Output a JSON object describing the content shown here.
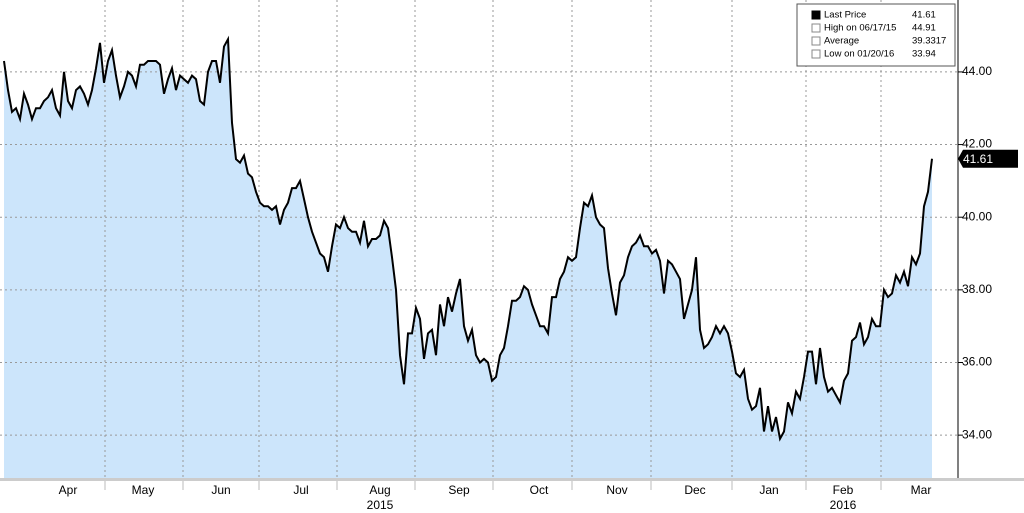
{
  "chart_data": {
    "type": "area",
    "values": [
      44.3,
      43.5,
      42.9,
      43.0,
      42.7,
      43.4,
      43.1,
      42.7,
      43.0,
      43.0,
      43.2,
      43.3,
      43.5,
      43.0,
      42.8,
      44.0,
      43.2,
      43.0,
      43.5,
      43.6,
      43.4,
      43.1,
      43.5,
      44.1,
      44.8,
      43.7,
      44.3,
      44.6,
      43.9,
      43.3,
      43.6,
      44.0,
      43.9,
      43.6,
      44.2,
      44.2,
      44.3,
      44.3,
      44.3,
      44.2,
      43.4,
      43.8,
      44.1,
      43.5,
      43.9,
      43.8,
      43.7,
      43.9,
      43.8,
      43.2,
      43.1,
      44.0,
      44.3,
      44.3,
      43.7,
      44.7,
      44.9,
      42.6,
      41.6,
      41.5,
      41.7,
      41.2,
      41.1,
      40.7,
      40.4,
      40.3,
      40.3,
      40.2,
      40.3,
      39.8,
      40.2,
      40.4,
      40.8,
      40.8,
      41.0,
      40.5,
      40.0,
      39.6,
      39.3,
      39.0,
      38.9,
      38.5,
      39.2,
      39.8,
      39.7,
      40.0,
      39.7,
      39.6,
      39.6,
      39.3,
      39.9,
      39.2,
      39.4,
      39.4,
      39.5,
      39.9,
      39.7,
      38.9,
      38.0,
      36.2,
      35.4,
      36.8,
      36.8,
      37.5,
      37.2,
      36.1,
      36.8,
      36.9,
      36.2,
      37.6,
      37.0,
      37.8,
      37.4,
      37.9,
      38.3,
      37.0,
      36.6,
      36.9,
      36.2,
      36.0,
      36.1,
      36.0,
      35.5,
      35.6,
      36.2,
      36.4,
      37.0,
      37.7,
      37.7,
      37.8,
      38.1,
      38.0,
      37.6,
      37.3,
      37.0,
      37.0,
      36.8,
      37.8,
      37.8,
      38.3,
      38.5,
      38.9,
      38.8,
      38.9,
      39.7,
      40.4,
      40.3,
      40.6,
      40.0,
      39.8,
      39.7,
      38.6,
      37.9,
      37.3,
      38.2,
      38.4,
      38.9,
      39.2,
      39.3,
      39.5,
      39.2,
      39.2,
      39.0,
      39.1,
      38.8,
      37.9,
      38.8,
      38.7,
      38.5,
      38.3,
      37.2,
      37.6,
      38.0,
      38.9,
      36.9,
      36.4,
      36.5,
      36.7,
      37.0,
      36.8,
      37.0,
      36.8,
      36.3,
      35.7,
      35.6,
      35.8,
      35.0,
      34.7,
      34.8,
      35.3,
      34.1,
      34.8,
      34.1,
      34.5,
      33.9,
      34.1,
      34.9,
      34.6,
      35.2,
      35.0,
      35.6,
      36.3,
      36.3,
      35.4,
      36.4,
      35.6,
      35.2,
      35.3,
      35.1,
      34.9,
      35.5,
      35.7,
      36.6,
      36.7,
      37.1,
      36.5,
      36.7,
      37.2,
      37.0,
      37.0,
      38.0,
      37.8,
      37.9,
      38.4,
      38.2,
      38.5,
      38.1,
      38.9,
      38.7,
      39.0,
      40.3,
      40.7,
      41.61
    ],
    "color": "#000000",
    "fill": "#cce5fb",
    "ylim": [
      32.82,
      45.98
    ],
    "yticks": [
      {
        "value": 34,
        "label": "34.00"
      },
      {
        "value": 36,
        "label": "36.00"
      },
      {
        "value": 38,
        "label": "38.00"
      },
      {
        "value": 40,
        "label": "40.00"
      },
      {
        "value": 42,
        "label": "42.00"
      },
      {
        "value": 44,
        "label": "44.00"
      }
    ],
    "xlim": [
      -1,
      238.5
    ],
    "xticks": [
      {
        "value": 16,
        "label": "Apr"
      },
      {
        "value": 34.75,
        "label": "May"
      },
      {
        "value": 54.25,
        "label": "Jun"
      },
      {
        "value": 74.25,
        "label": "Jul"
      },
      {
        "value": 94,
        "label": "Aug"
      },
      {
        "value": 113.75,
        "label": "Sep"
      },
      {
        "value": 133.75,
        "label": "Oct"
      },
      {
        "value": 153.25,
        "label": "Nov"
      },
      {
        "value": 172.75,
        "label": "Dec"
      },
      {
        "value": 191.25,
        "label": "Jan"
      },
      {
        "value": 209.75,
        "label": "Feb"
      },
      {
        "value": 229.25,
        "label": "Mar"
      }
    ],
    "xgrid": [
      25.25,
      44.75,
      63.75,
      83.25,
      102.75,
      122.25,
      142,
      161.75,
      182,
      200.5,
      219.25
    ],
    "year_labels": [
      {
        "value": 94,
        "label": "2015"
      },
      {
        "value": 209.75,
        "label": "2016"
      }
    ],
    "grid": true,
    "last_value": 41.61,
    "legend": [
      {
        "label": "Last Price",
        "value": 41.61
      },
      {
        "label": "High on 06/17/15",
        "value": 44.91
      },
      {
        "label": "Average",
        "value": 39.3317
      },
      {
        "label": "Low on 01/20/16",
        "value": 33.94
      }
    ]
  }
}
